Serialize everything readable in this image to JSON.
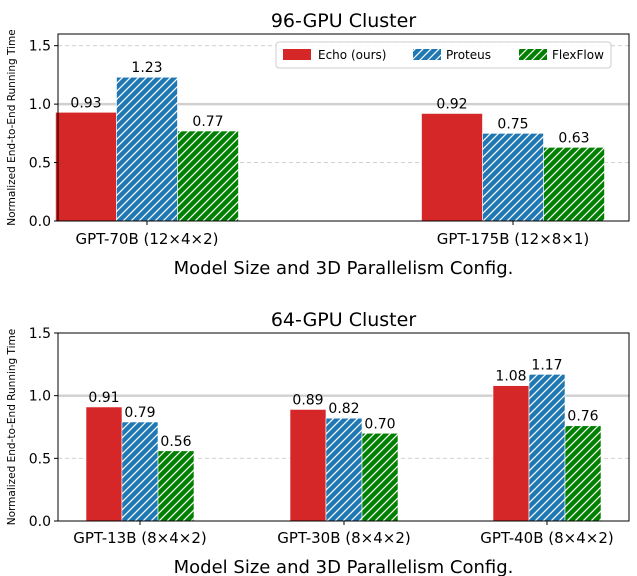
{
  "colors": {
    "echo": "#d62728",
    "proteus": "#1f77b4",
    "flexflow": "#008000",
    "hatch": "#ffffff",
    "grid_major": "#d0d0d0",
    "grid_minor": "#cccccc"
  },
  "chart_data": [
    {
      "type": "bar",
      "title": "96-GPU Cluster",
      "xlabel": "Model Size and 3D Parallelism Config.",
      "ylabel": "Normalized End-to-End Running Time",
      "categories": [
        "GPT-70B (12×4×2)",
        "GPT-175B (12×8×1)"
      ],
      "series": [
        {
          "name": "Echo (ours)",
          "values": [
            0.93,
            0.92
          ],
          "labels": [
            "0.93",
            "0.92"
          ]
        },
        {
          "name": "Proteus",
          "values": [
            1.23,
            0.75
          ],
          "labels": [
            "1.23",
            "0.75"
          ]
        },
        {
          "name": "FlexFlow",
          "values": [
            0.77,
            0.63
          ],
          "labels": [
            "0.77",
            "0.63"
          ]
        }
      ],
      "ylim": [
        0,
        1.6
      ],
      "yticks": [
        "0.0",
        "0.5",
        "1.0",
        "1.5"
      ],
      "grid": "horizontal dashed, solid reference line at 1.0",
      "legend_position": "top-right"
    },
    {
      "type": "bar",
      "title": "64-GPU Cluster",
      "xlabel": "Model Size and 3D Parallelism Config.",
      "ylabel": "Normalized End-to-End Running Time",
      "categories": [
        "GPT-13B (8×4×2)",
        "GPT-30B (8×4×2)",
        "GPT-40B (8×4×2)"
      ],
      "series": [
        {
          "name": "Echo (ours)",
          "values": [
            0.91,
            0.89,
            1.08
          ],
          "labels": [
            "0.91",
            "0.89",
            "1.08"
          ]
        },
        {
          "name": "Proteus",
          "values": [
            0.79,
            0.82,
            1.17
          ],
          "labels": [
            "0.79",
            "0.82",
            "1.17"
          ]
        },
        {
          "name": "FlexFlow",
          "values": [
            0.56,
            0.7,
            0.76
          ],
          "labels": [
            "0.56",
            "0.70",
            "0.76"
          ]
        }
      ],
      "ylim": [
        0,
        1.5
      ],
      "yticks": [
        "0.0",
        "0.5",
        "1.0",
        "1.5"
      ],
      "grid": "horizontal dashed, solid reference line at 1.0",
      "legend_position": "none"
    }
  ]
}
